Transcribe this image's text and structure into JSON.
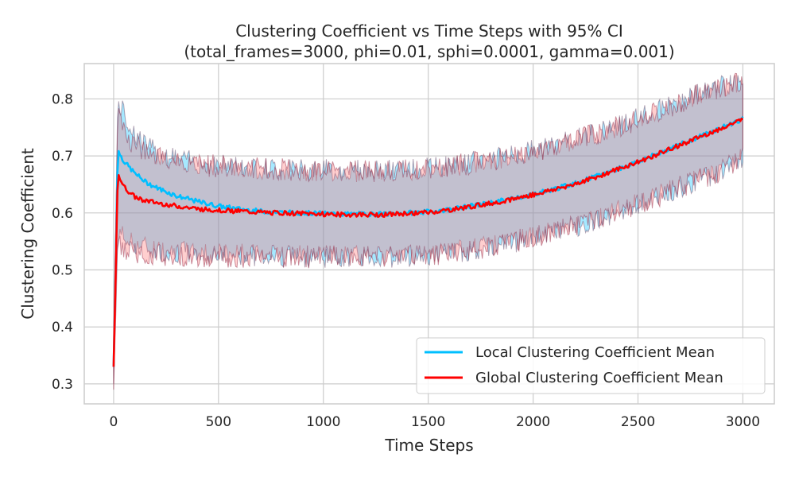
{
  "chart_data": {
    "type": "line",
    "title": "Clustering Coefficient vs Time Steps with 95% CI",
    "subtitle": "(total_frames=3000, phi=0.01, sphi=0.0001, gamma=0.001)",
    "xlabel": "Time Steps",
    "ylabel": "Clustering Coefficient",
    "xlim": [
      -140,
      3150
    ],
    "ylim": [
      0.265,
      0.862
    ],
    "x_ticks": [
      0,
      500,
      1000,
      1500,
      2000,
      2500,
      3000
    ],
    "y_ticks": [
      0.3,
      0.4,
      0.5,
      0.6,
      0.7,
      0.8
    ],
    "grid": true,
    "legend_position": "lower-right",
    "series": [
      {
        "name": "Local Clustering Coefficient Mean",
        "color": "#00bfff",
        "band_color": "#00bfff",
        "x": [
          0,
          20,
          50,
          100,
          150,
          200,
          300,
          400,
          500,
          600,
          700,
          800,
          900,
          1000,
          1100,
          1200,
          1300,
          1400,
          1500,
          1600,
          1700,
          1800,
          1900,
          2000,
          2100,
          2200,
          2300,
          2400,
          2500,
          2600,
          2700,
          2800,
          2900,
          3000
        ],
        "y": [
          0.33,
          0.71,
          0.69,
          0.67,
          0.655,
          0.645,
          0.63,
          0.62,
          0.612,
          0.607,
          0.603,
          0.601,
          0.6,
          0.599,
          0.598,
          0.598,
          0.598,
          0.6,
          0.602,
          0.606,
          0.612,
          0.618,
          0.625,
          0.633,
          0.642,
          0.652,
          0.664,
          0.677,
          0.69,
          0.705,
          0.72,
          0.735,
          0.75,
          0.765
        ],
        "ci_lower": [
          0.3,
          0.57,
          0.555,
          0.545,
          0.54,
          0.535,
          0.532,
          0.53,
          0.528,
          0.527,
          0.526,
          0.525,
          0.524,
          0.524,
          0.523,
          0.523,
          0.523,
          0.524,
          0.526,
          0.53,
          0.536,
          0.542,
          0.549,
          0.557,
          0.567,
          0.577,
          0.589,
          0.602,
          0.615,
          0.63,
          0.645,
          0.66,
          0.675,
          0.7
        ],
        "ci_upper": [
          0.36,
          0.8,
          0.77,
          0.74,
          0.72,
          0.705,
          0.695,
          0.688,
          0.684,
          0.681,
          0.679,
          0.677,
          0.676,
          0.675,
          0.674,
          0.674,
          0.674,
          0.676,
          0.678,
          0.682,
          0.688,
          0.694,
          0.701,
          0.709,
          0.718,
          0.728,
          0.74,
          0.752,
          0.765,
          0.78,
          0.795,
          0.81,
          0.822,
          0.83
        ]
      },
      {
        "name": "Global Clustering Coefficient Mean",
        "color": "#ff0000",
        "band_color": "#ff6b6b",
        "x": [
          0,
          20,
          50,
          100,
          150,
          200,
          300,
          400,
          500,
          600,
          700,
          800,
          900,
          1000,
          1100,
          1200,
          1300,
          1400,
          1500,
          1600,
          1700,
          1800,
          1900,
          2000,
          2100,
          2200,
          2300,
          2400,
          2500,
          2600,
          2700,
          2800,
          2900,
          3000
        ],
        "y": [
          0.33,
          0.67,
          0.645,
          0.628,
          0.622,
          0.618,
          0.612,
          0.607,
          0.605,
          0.603,
          0.601,
          0.6,
          0.599,
          0.598,
          0.597,
          0.597,
          0.597,
          0.599,
          0.601,
          0.605,
          0.611,
          0.617,
          0.624,
          0.632,
          0.641,
          0.651,
          0.663,
          0.676,
          0.689,
          0.704,
          0.719,
          0.734,
          0.749,
          0.764
        ],
        "ci_lower": [
          0.29,
          0.55,
          0.535,
          0.53,
          0.528,
          0.527,
          0.526,
          0.525,
          0.524,
          0.524,
          0.524,
          0.524,
          0.523,
          0.523,
          0.523,
          0.523,
          0.523,
          0.524,
          0.526,
          0.53,
          0.536,
          0.542,
          0.549,
          0.557,
          0.567,
          0.577,
          0.589,
          0.602,
          0.615,
          0.63,
          0.645,
          0.66,
          0.675,
          0.7
        ],
        "ci_upper": [
          0.36,
          0.77,
          0.74,
          0.72,
          0.706,
          0.698,
          0.69,
          0.685,
          0.682,
          0.68,
          0.678,
          0.676,
          0.675,
          0.674,
          0.673,
          0.673,
          0.673,
          0.675,
          0.677,
          0.681,
          0.687,
          0.693,
          0.7,
          0.708,
          0.717,
          0.727,
          0.739,
          0.751,
          0.764,
          0.779,
          0.794,
          0.809,
          0.821,
          0.829
        ]
      }
    ]
  }
}
